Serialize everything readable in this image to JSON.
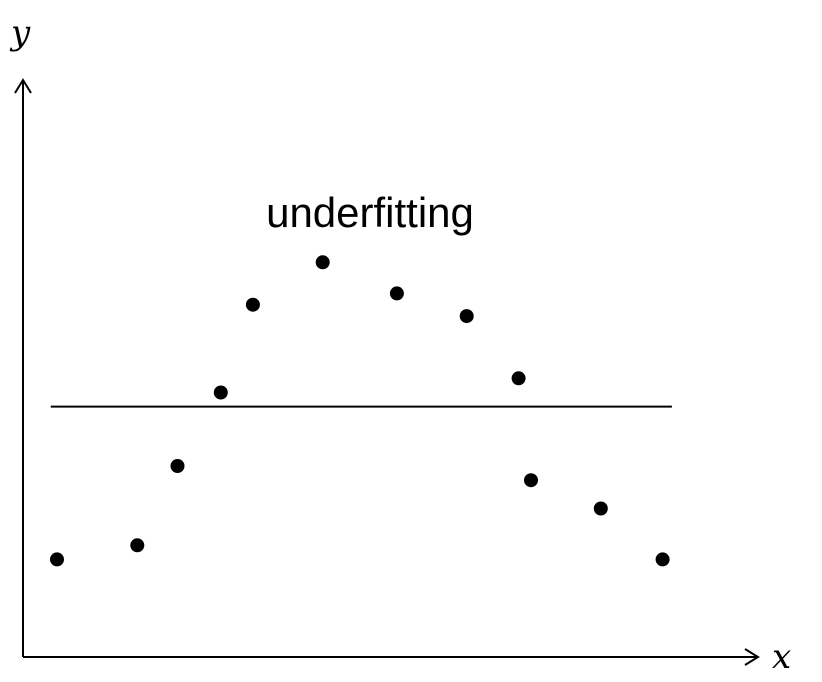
{
  "chart_data": {
    "type": "scatter",
    "title": "",
    "xlabel": "x",
    "ylabel": "y",
    "annotation": "underfitting",
    "xlim": [
      0,
      10
    ],
    "ylim": [
      0,
      10
    ],
    "grid": false,
    "x": [
      0.55,
      1.85,
      2.5,
      3.2,
      3.72,
      4.85,
      6.05,
      7.18,
      8.02,
      8.22,
      9.35,
      10.35
    ],
    "y": [
      1.6,
      1.85,
      3.25,
      4.55,
      6.1,
      6.85,
      6.3,
      5.9,
      4.8,
      3.0,
      2.5,
      1.6
    ],
    "fit_line": {
      "type": "constant",
      "y": 4.3,
      "x_range": [
        0.45,
        10.5
      ]
    },
    "colors": {
      "points": "#000000",
      "line": "#000000",
      "axes": "#000000"
    }
  }
}
